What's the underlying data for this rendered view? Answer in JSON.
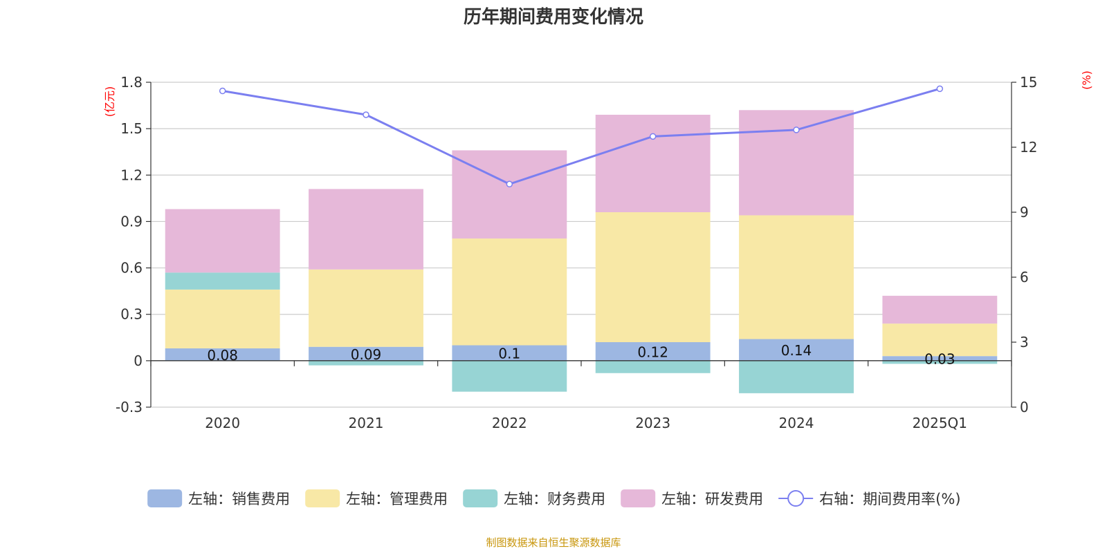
{
  "chart_data": {
    "type": "bar",
    "title": "历年期间费用变化情况",
    "left_axis": {
      "unit": "(亿元)",
      "min": -0.3,
      "max": 1.8,
      "ticks": [
        "-0.3",
        "0",
        "0.3",
        "0.6",
        "0.9",
        "1.2",
        "1.5",
        "1.8"
      ]
    },
    "right_axis": {
      "unit": "(%)",
      "min": 0,
      "max": 15,
      "ticks": [
        "0",
        "3",
        "6",
        "9",
        "12",
        "15"
      ]
    },
    "categories": [
      "2020",
      "2021",
      "2022",
      "2023",
      "2024",
      "2025Q1"
    ],
    "series": [
      {
        "name": "左轴：销售费用",
        "type": "bar",
        "color": "#9db7e2",
        "values": [
          0.08,
          0.09,
          0.1,
          0.12,
          0.14,
          0.03
        ],
        "labels": [
          "0.08",
          "0.09",
          "0.1",
          "0.12",
          "0.14",
          "0.03"
        ]
      },
      {
        "name": "左轴：管理费用",
        "type": "bar",
        "color": "#f8e8a6",
        "values": [
          0.38,
          0.5,
          0.69,
          0.84,
          0.8,
          0.21
        ]
      },
      {
        "name": "左轴：财务费用",
        "type": "bar",
        "color": "#97d4d4",
        "values": [
          0.11,
          -0.03,
          -0.2,
          -0.08,
          -0.21,
          -0.02
        ]
      },
      {
        "name": "左轴：研发费用",
        "type": "bar",
        "color": "#e6b8d9",
        "values": [
          0.41,
          0.52,
          0.57,
          0.63,
          0.68,
          0.18
        ]
      },
      {
        "name": "右轴：期间费用率(%)",
        "type": "line",
        "color": "#7b7ff0",
        "values": [
          14.6,
          13.5,
          10.3,
          12.5,
          12.8,
          14.7
        ]
      }
    ],
    "grid": true,
    "legend_position": "bottom"
  },
  "footer": {
    "source": "制图数据来自恒生聚源数据库"
  }
}
